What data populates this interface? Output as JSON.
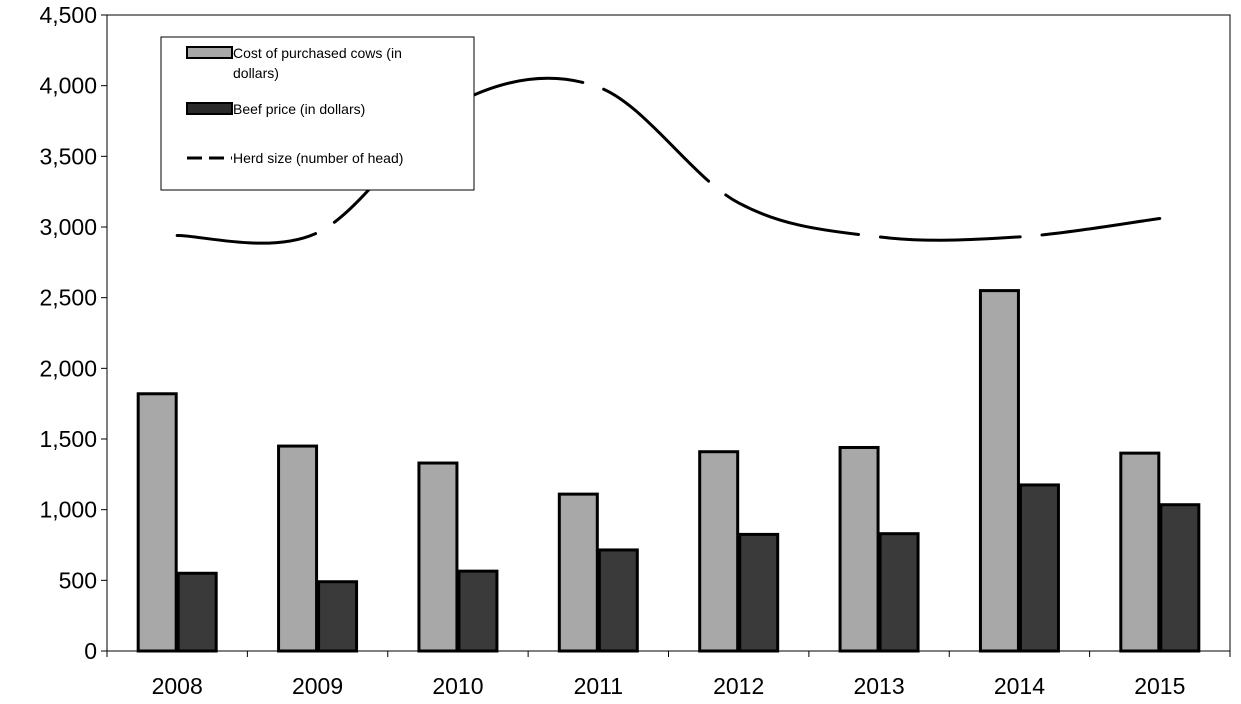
{
  "chart_data": {
    "type": "bar",
    "categories": [
      "2008",
      "2009",
      "2010",
      "2011",
      "2012",
      "2013",
      "2014",
      "2015"
    ],
    "ylim": [
      0,
      4500
    ],
    "yticks": [
      0,
      500,
      1000,
      1500,
      2000,
      2500,
      3000,
      3500,
      4000,
      4500
    ],
    "ytick_labels": [
      "0",
      "500",
      "1,000",
      "1,500",
      "2,000",
      "2,500",
      "3,000",
      "3,500",
      "4,000",
      "4,500"
    ],
    "grid": false,
    "legend_position": "top-left",
    "series": [
      {
        "name": "Cost of purchased cows (in dollars)",
        "kind": "bar",
        "color": "#a8a8a8",
        "values": [
          1820,
          1450,
          1330,
          1110,
          1410,
          1440,
          2550,
          1400
        ]
      },
      {
        "name": "Beef price (in dollars)",
        "kind": "bar",
        "color": "#3a3a3a",
        "values": [
          550,
          490,
          565,
          715,
          825,
          830,
          1175,
          1035
        ]
      },
      {
        "name": "Herd size (number of head)",
        "kind": "line",
        "style": "dashed",
        "color": "#000000",
        "values": [
          2940,
          2960,
          3880,
          3990,
          3170,
          2930,
          2930,
          3060
        ]
      }
    ],
    "legend": {
      "bar1_line1": "Cost of purchased cows (in",
      "bar1_line2": "dollars)",
      "bar2": "Beef price (in dollars)",
      "line": "Herd size (number of head)"
    }
  }
}
